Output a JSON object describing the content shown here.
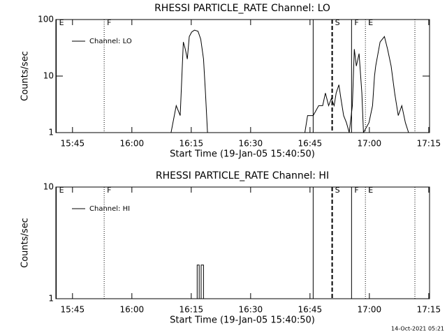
{
  "chart_data": [
    {
      "type": "line",
      "title": "RHESSI PARTICLE_RATE Channel: LO",
      "x_label": "Start Time (19-Jan-05 15:40:50)",
      "y_label": "Counts/sec",
      "yscale": "log",
      "ylim": [
        1,
        100
      ],
      "yticks": [
        1,
        10,
        100
      ],
      "xlim": [
        940.8,
        1035.2
      ],
      "xticks": [
        {
          "value": 945,
          "label": "15:45"
        },
        {
          "value": 960,
          "label": "16:00"
        },
        {
          "value": 975,
          "label": "16:15"
        },
        {
          "value": 990,
          "label": "16:30"
        },
        {
          "value": 1005,
          "label": "16:45"
        },
        {
          "value": 1020,
          "label": "17:00"
        },
        {
          "value": 1035,
          "label": "17:15"
        }
      ],
      "legend": "upper left",
      "series": [
        {
          "name": "Channel: LO",
          "color": "#000000",
          "x": [
            969.9,
            971.2,
            972.2,
            973.0,
            973.5,
            974.0,
            974.5,
            975.1,
            975.8,
            976.7,
            977.4,
            978.1,
            978.6,
            979.1,
            980.0,
            1003.7,
            1004.4,
            1005.8,
            1007.2,
            1008.2,
            1008.9,
            1009.7,
            1010.4,
            1011.1,
            1011.6,
            1012.3,
            1012.8,
            1013.5,
            1014.2,
            1014.9,
            1015.7,
            1016.2,
            1016.7,
            1017.4,
            1018.1,
            1018.5,
            1019.9,
            1020.8,
            1021.3,
            1021.6,
            1022.7,
            1023.8,
            1024.6,
            1025.5,
            1026.4,
            1027.3,
            1028.2,
            1029.1,
            1029.9
          ],
          "values": [
            1,
            3,
            2,
            40,
            30,
            20,
            50,
            60,
            65,
            62,
            45,
            20,
            5,
            1,
            null,
            1,
            2,
            2,
            3,
            3,
            5,
            3,
            4,
            3,
            5,
            7,
            4,
            2,
            1.5,
            1,
            3,
            30,
            15,
            25,
            5,
            1,
            1.5,
            3,
            10,
            15,
            40,
            50,
            30,
            15,
            5,
            2,
            3,
            1.5,
            1
          ]
        }
      ],
      "markers": [
        {
          "x": 940.9,
          "label": "E",
          "style": "solid"
        },
        {
          "x": 953.0,
          "label": "F",
          "style": "dotted"
        },
        {
          "x": 1005.8,
          "style": "solid"
        },
        {
          "x": 1010.6,
          "label": "S",
          "style": "dashed"
        },
        {
          "x": 1015.5,
          "label": "F",
          "style": "solid"
        },
        {
          "x": 1019.0,
          "label": "E",
          "style": "dotted"
        },
        {
          "x": 1031.5,
          "style": "dotted"
        }
      ]
    },
    {
      "type": "line",
      "title": "RHESSI PARTICLE_RATE Channel: HI",
      "x_label": "Start Time (19-Jan-05 15:40:50)",
      "y_label": "Counts/sec",
      "yscale": "log",
      "ylim": [
        1,
        10
      ],
      "yticks": [
        1,
        10
      ],
      "xlim": [
        940.8,
        1035.2
      ],
      "xticks": [
        {
          "value": 945,
          "label": "15:45"
        },
        {
          "value": 960,
          "label": "16:00"
        },
        {
          "value": 975,
          "label": "16:15"
        },
        {
          "value": 990,
          "label": "16:30"
        },
        {
          "value": 1005,
          "label": "16:45"
        },
        {
          "value": 1020,
          "label": "17:00"
        },
        {
          "value": 1035,
          "label": "17:15"
        }
      ],
      "legend": "upper left",
      "series": [
        {
          "name": "Channel: HI",
          "color": "#000000",
          "x": [
            976.5,
            976.5,
            977.0,
            977.0,
            977.5,
            977.5,
            978.1,
            978.1
          ],
          "values": [
            1,
            2,
            2,
            1,
            1,
            2,
            2,
            1
          ]
        }
      ],
      "markers": [
        {
          "x": 940.9,
          "label": "E",
          "style": "solid"
        },
        {
          "x": 953.0,
          "label": "F",
          "style": "dotted"
        },
        {
          "x": 1005.8,
          "style": "solid"
        },
        {
          "x": 1010.6,
          "label": "S",
          "style": "dashed"
        },
        {
          "x": 1015.5,
          "label": "F",
          "style": "solid"
        },
        {
          "x": 1019.0,
          "label": "E",
          "style": "dotted"
        },
        {
          "x": 1031.5,
          "style": "dotted"
        }
      ]
    }
  ],
  "footer": {
    "timestamp": "14-Oct-2021 05:21"
  }
}
